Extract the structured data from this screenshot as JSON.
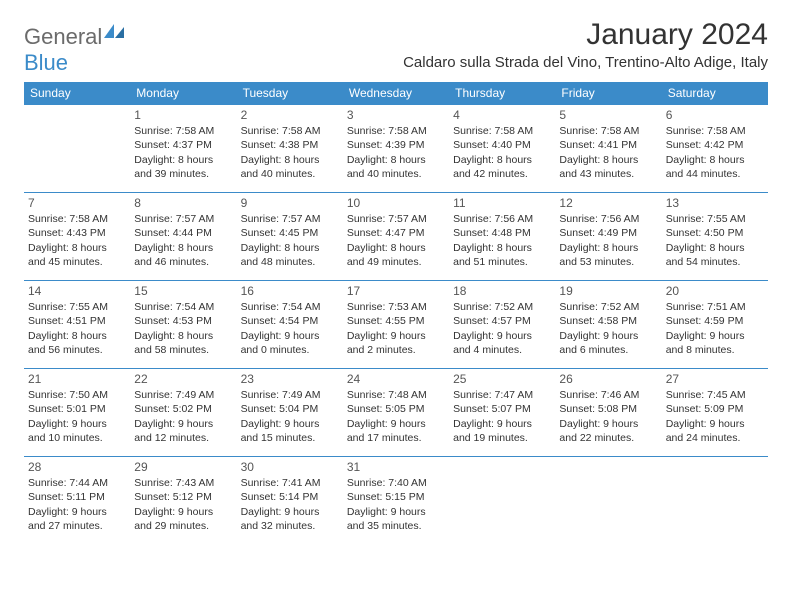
{
  "logo": {
    "part1": "General",
    "part2": "Blue"
  },
  "title": "January 2024",
  "location": "Caldaro sulla Strada del Vino, Trentino-Alto Adige, Italy",
  "colors": {
    "header_bg": "#3b8bc9",
    "header_text": "#ffffff",
    "border": "#3b8bc9",
    "logo_gray": "#6b6b6b",
    "logo_blue": "#3b8bc9",
    "body_text": "#333333",
    "background": "#ffffff"
  },
  "day_headers": [
    "Sunday",
    "Monday",
    "Tuesday",
    "Wednesday",
    "Thursday",
    "Friday",
    "Saturday"
  ],
  "weeks": [
    [
      {
        "num": "",
        "lines": []
      },
      {
        "num": "1",
        "lines": [
          "Sunrise: 7:58 AM",
          "Sunset: 4:37 PM",
          "Daylight: 8 hours and 39 minutes."
        ]
      },
      {
        "num": "2",
        "lines": [
          "Sunrise: 7:58 AM",
          "Sunset: 4:38 PM",
          "Daylight: 8 hours and 40 minutes."
        ]
      },
      {
        "num": "3",
        "lines": [
          "Sunrise: 7:58 AM",
          "Sunset: 4:39 PM",
          "Daylight: 8 hours and 40 minutes."
        ]
      },
      {
        "num": "4",
        "lines": [
          "Sunrise: 7:58 AM",
          "Sunset: 4:40 PM",
          "Daylight: 8 hours and 42 minutes."
        ]
      },
      {
        "num": "5",
        "lines": [
          "Sunrise: 7:58 AM",
          "Sunset: 4:41 PM",
          "Daylight: 8 hours and 43 minutes."
        ]
      },
      {
        "num": "6",
        "lines": [
          "Sunrise: 7:58 AM",
          "Sunset: 4:42 PM",
          "Daylight: 8 hours and 44 minutes."
        ]
      }
    ],
    [
      {
        "num": "7",
        "lines": [
          "Sunrise: 7:58 AM",
          "Sunset: 4:43 PM",
          "Daylight: 8 hours and 45 minutes."
        ]
      },
      {
        "num": "8",
        "lines": [
          "Sunrise: 7:57 AM",
          "Sunset: 4:44 PM",
          "Daylight: 8 hours and 46 minutes."
        ]
      },
      {
        "num": "9",
        "lines": [
          "Sunrise: 7:57 AM",
          "Sunset: 4:45 PM",
          "Daylight: 8 hours and 48 minutes."
        ]
      },
      {
        "num": "10",
        "lines": [
          "Sunrise: 7:57 AM",
          "Sunset: 4:47 PM",
          "Daylight: 8 hours and 49 minutes."
        ]
      },
      {
        "num": "11",
        "lines": [
          "Sunrise: 7:56 AM",
          "Sunset: 4:48 PM",
          "Daylight: 8 hours and 51 minutes."
        ]
      },
      {
        "num": "12",
        "lines": [
          "Sunrise: 7:56 AM",
          "Sunset: 4:49 PM",
          "Daylight: 8 hours and 53 minutes."
        ]
      },
      {
        "num": "13",
        "lines": [
          "Sunrise: 7:55 AM",
          "Sunset: 4:50 PM",
          "Daylight: 8 hours and 54 minutes."
        ]
      }
    ],
    [
      {
        "num": "14",
        "lines": [
          "Sunrise: 7:55 AM",
          "Sunset: 4:51 PM",
          "Daylight: 8 hours and 56 minutes."
        ]
      },
      {
        "num": "15",
        "lines": [
          "Sunrise: 7:54 AM",
          "Sunset: 4:53 PM",
          "Daylight: 8 hours and 58 minutes."
        ]
      },
      {
        "num": "16",
        "lines": [
          "Sunrise: 7:54 AM",
          "Sunset: 4:54 PM",
          "Daylight: 9 hours and 0 minutes."
        ]
      },
      {
        "num": "17",
        "lines": [
          "Sunrise: 7:53 AM",
          "Sunset: 4:55 PM",
          "Daylight: 9 hours and 2 minutes."
        ]
      },
      {
        "num": "18",
        "lines": [
          "Sunrise: 7:52 AM",
          "Sunset: 4:57 PM",
          "Daylight: 9 hours and 4 minutes."
        ]
      },
      {
        "num": "19",
        "lines": [
          "Sunrise: 7:52 AM",
          "Sunset: 4:58 PM",
          "Daylight: 9 hours and 6 minutes."
        ]
      },
      {
        "num": "20",
        "lines": [
          "Sunrise: 7:51 AM",
          "Sunset: 4:59 PM",
          "Daylight: 9 hours and 8 minutes."
        ]
      }
    ],
    [
      {
        "num": "21",
        "lines": [
          "Sunrise: 7:50 AM",
          "Sunset: 5:01 PM",
          "Daylight: 9 hours and 10 minutes."
        ]
      },
      {
        "num": "22",
        "lines": [
          "Sunrise: 7:49 AM",
          "Sunset: 5:02 PM",
          "Daylight: 9 hours and 12 minutes."
        ]
      },
      {
        "num": "23",
        "lines": [
          "Sunrise: 7:49 AM",
          "Sunset: 5:04 PM",
          "Daylight: 9 hours and 15 minutes."
        ]
      },
      {
        "num": "24",
        "lines": [
          "Sunrise: 7:48 AM",
          "Sunset: 5:05 PM",
          "Daylight: 9 hours and 17 minutes."
        ]
      },
      {
        "num": "25",
        "lines": [
          "Sunrise: 7:47 AM",
          "Sunset: 5:07 PM",
          "Daylight: 9 hours and 19 minutes."
        ]
      },
      {
        "num": "26",
        "lines": [
          "Sunrise: 7:46 AM",
          "Sunset: 5:08 PM",
          "Daylight: 9 hours and 22 minutes."
        ]
      },
      {
        "num": "27",
        "lines": [
          "Sunrise: 7:45 AM",
          "Sunset: 5:09 PM",
          "Daylight: 9 hours and 24 minutes."
        ]
      }
    ],
    [
      {
        "num": "28",
        "lines": [
          "Sunrise: 7:44 AM",
          "Sunset: 5:11 PM",
          "Daylight: 9 hours and 27 minutes."
        ]
      },
      {
        "num": "29",
        "lines": [
          "Sunrise: 7:43 AM",
          "Sunset: 5:12 PM",
          "Daylight: 9 hours and 29 minutes."
        ]
      },
      {
        "num": "30",
        "lines": [
          "Sunrise: 7:41 AM",
          "Sunset: 5:14 PM",
          "Daylight: 9 hours and 32 minutes."
        ]
      },
      {
        "num": "31",
        "lines": [
          "Sunrise: 7:40 AM",
          "Sunset: 5:15 PM",
          "Daylight: 9 hours and 35 minutes."
        ]
      },
      {
        "num": "",
        "lines": []
      },
      {
        "num": "",
        "lines": []
      },
      {
        "num": "",
        "lines": []
      }
    ]
  ]
}
